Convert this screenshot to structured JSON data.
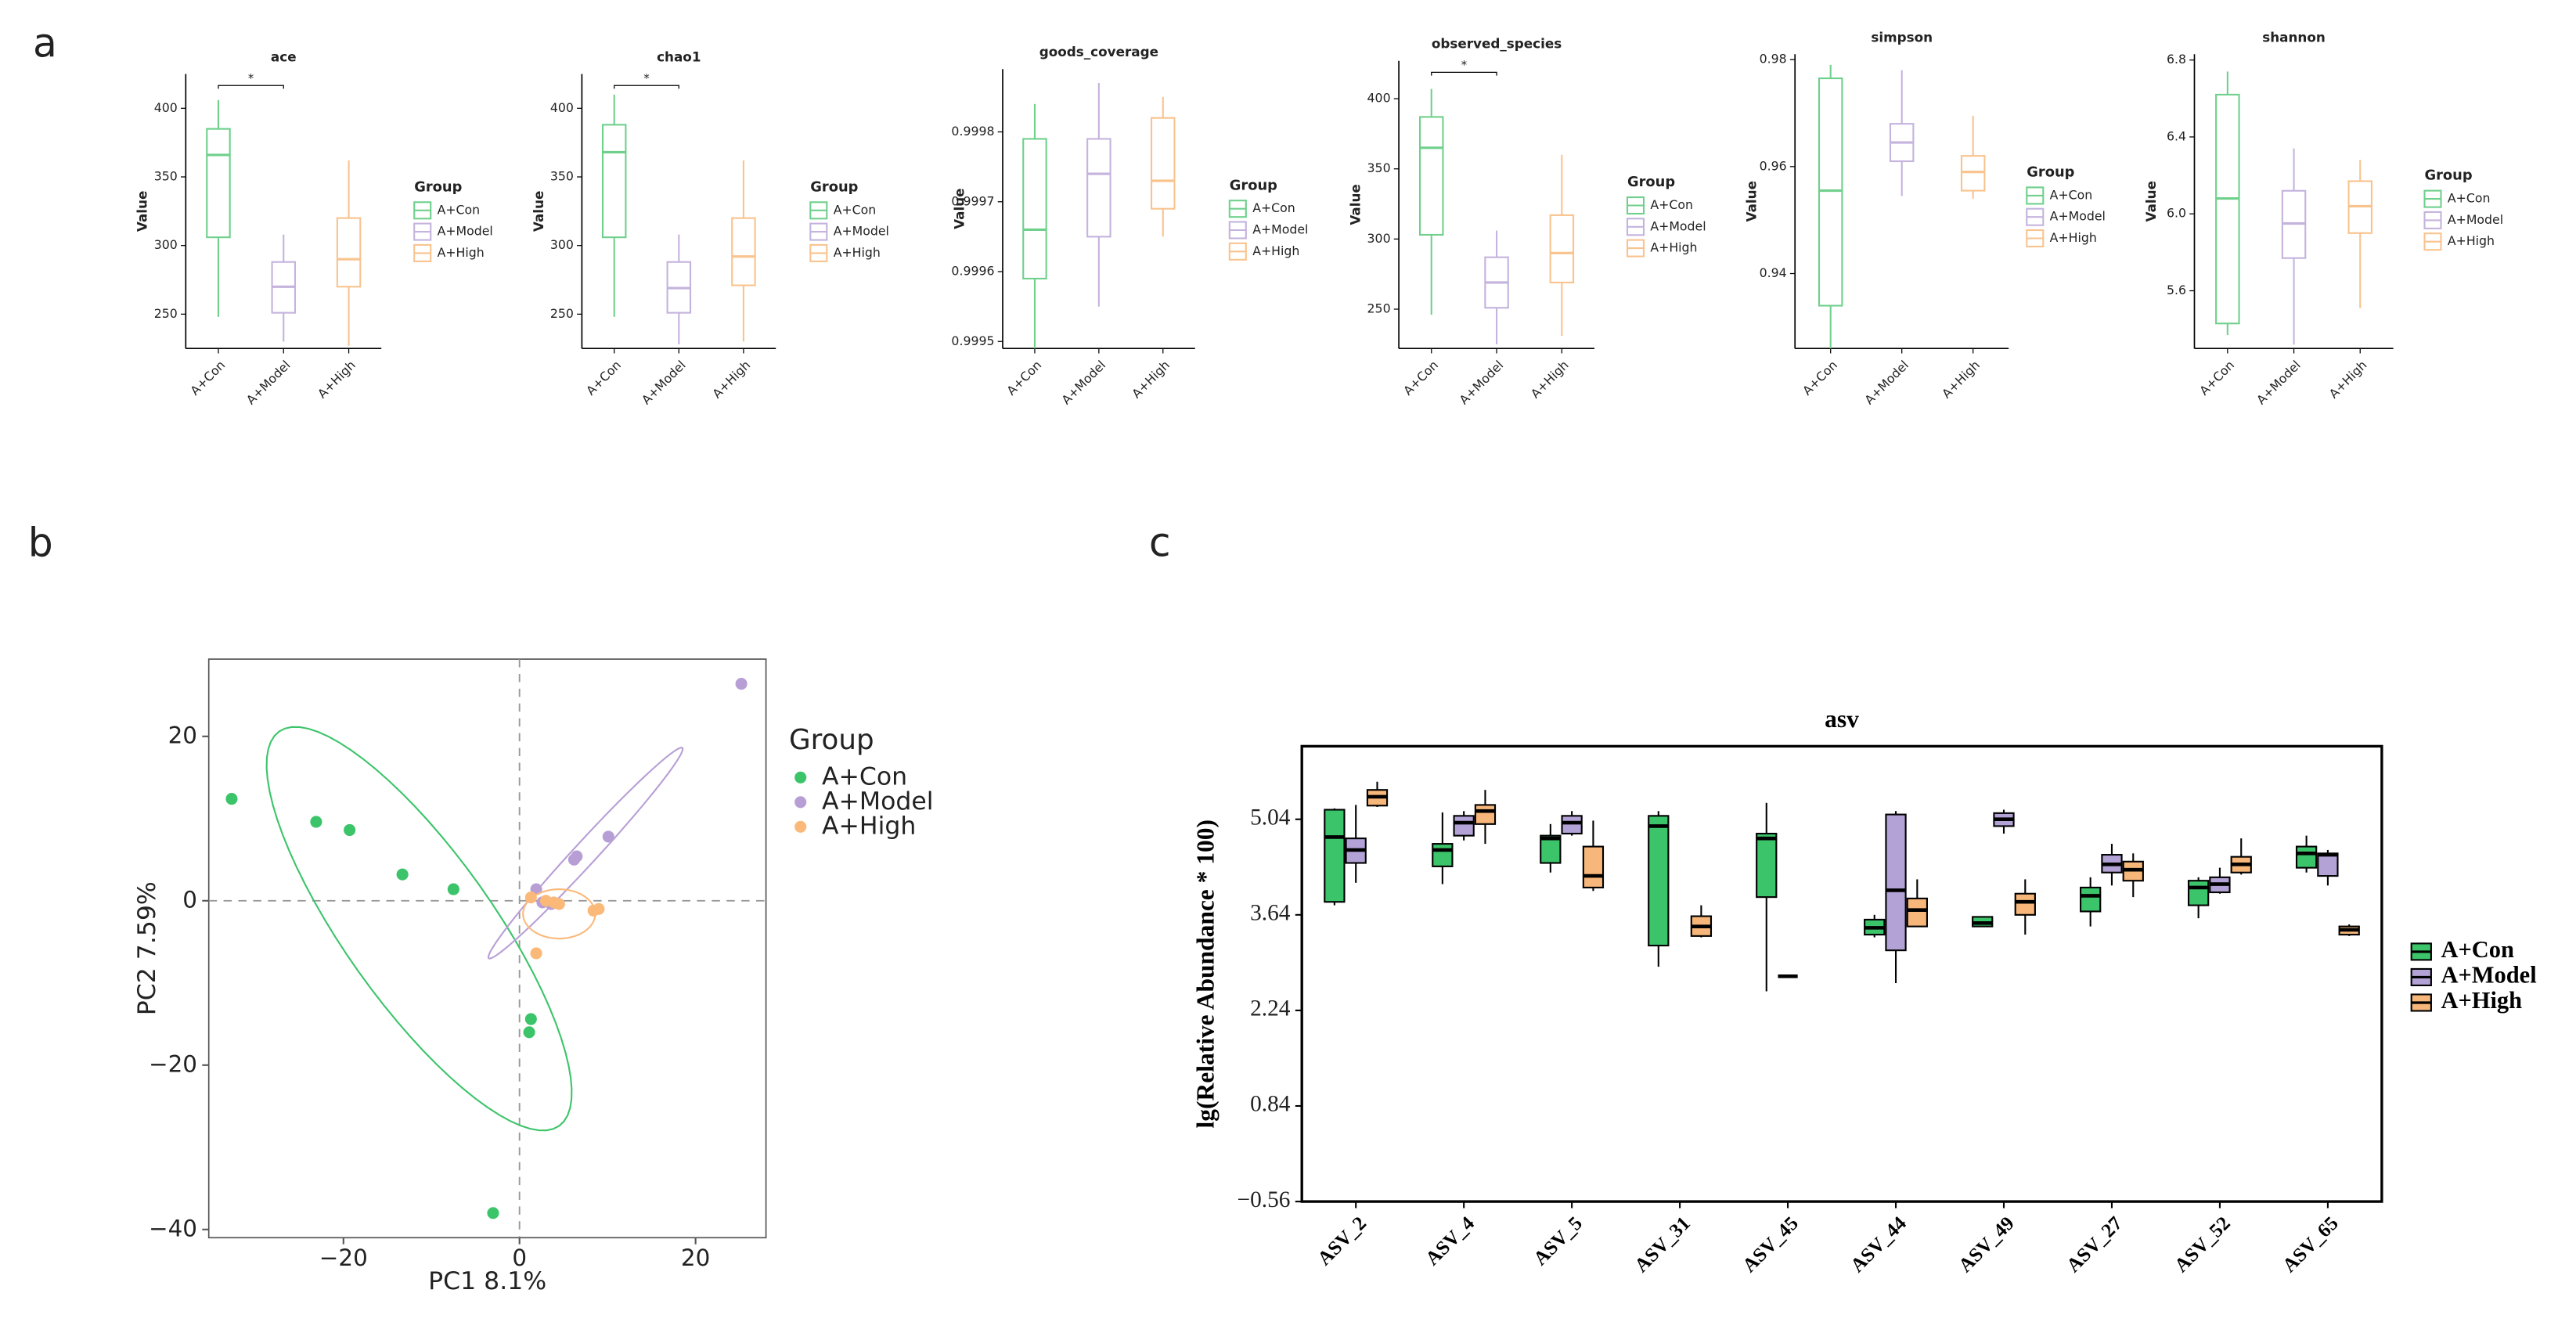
{
  "panel_labels": [
    "a",
    "b",
    "c"
  ],
  "chart_data": [
    {
      "type": "box",
      "title": "ace",
      "y_label": "Value",
      "legend_title": "Group",
      "categories": [
        "A+Con",
        "A+Model",
        "A+High"
      ],
      "ylim": [
        225,
        425
      ],
      "yticks": [
        250,
        300,
        350,
        400
      ],
      "annotations": [
        {
          "text": "*",
          "between": [
            "A+Con",
            "A+Model"
          ]
        }
      ],
      "series": [
        {
          "name": "A+Con",
          "color": "#6fd08c",
          "min": 248,
          "q1": 306,
          "median": 366,
          "q3": 385,
          "max": 406
        },
        {
          "name": "A+Model",
          "color": "#c4b3dd",
          "min": 230,
          "q1": 251,
          "median": 270,
          "q3": 288,
          "max": 308
        },
        {
          "name": "A+High",
          "color": "#f9c38e",
          "min": 227,
          "q1": 270,
          "median": 290,
          "q3": 320,
          "max": 362
        }
      ]
    },
    {
      "type": "box",
      "title": "chao1",
      "y_label": "Value",
      "legend_title": "Group",
      "categories": [
        "A+Con",
        "A+Model",
        "A+High"
      ],
      "ylim": [
        225,
        425
      ],
      "yticks": [
        250,
        300,
        350,
        400
      ],
      "annotations": [
        {
          "text": "*",
          "between": [
            "A+Con",
            "A+Model"
          ]
        }
      ],
      "series": [
        {
          "name": "A+Con",
          "color": "#6fd08c",
          "min": 248,
          "q1": 306,
          "median": 368,
          "q3": 388,
          "max": 410
        },
        {
          "name": "A+Model",
          "color": "#c4b3dd",
          "min": 228,
          "q1": 251,
          "median": 269,
          "q3": 288,
          "max": 308
        },
        {
          "name": "A+High",
          "color": "#f9c38e",
          "min": 230,
          "q1": 271,
          "median": 292,
          "q3": 320,
          "max": 362
        }
      ]
    },
    {
      "type": "box",
      "title": "goods_coverage",
      "y_label": "Value",
      "legend_title": "Group",
      "categories": [
        "A+Con",
        "A+Model",
        "A+High"
      ],
      "ylim": [
        0.99949,
        0.99989
      ],
      "yticks": [
        0.9995,
        0.9996,
        0.9997,
        0.9998
      ],
      "series": [
        {
          "name": "A+Con",
          "color": "#6fd08c",
          "min": 0.99949,
          "q1": 0.99959,
          "median": 0.99966,
          "q3": 0.99979,
          "max": 0.99984
        },
        {
          "name": "A+Model",
          "color": "#c4b3dd",
          "min": 0.99955,
          "q1": 0.99965,
          "median": 0.99974,
          "q3": 0.99979,
          "max": 0.99987
        },
        {
          "name": "A+High",
          "color": "#f9c38e",
          "min": 0.99965,
          "q1": 0.99969,
          "median": 0.99973,
          "q3": 0.99982,
          "max": 0.99985
        }
      ]
    },
    {
      "type": "box",
      "title": "observed_species",
      "y_label": "Value",
      "legend_title": "Group",
      "categories": [
        "A+Con",
        "A+Model",
        "A+High"
      ],
      "ylim": [
        222,
        427
      ],
      "yticks": [
        250,
        300,
        350,
        400
      ],
      "annotations": [
        {
          "text": "*",
          "between": [
            "A+Con",
            "A+Model"
          ]
        }
      ],
      "series": [
        {
          "name": "A+Con",
          "color": "#6fd08c",
          "min": 246,
          "q1": 303,
          "median": 365,
          "q3": 387,
          "max": 407
        },
        {
          "name": "A+Model",
          "color": "#c4b3dd",
          "min": 225,
          "q1": 251,
          "median": 269,
          "q3": 287,
          "max": 306
        },
        {
          "name": "A+High",
          "color": "#f9c38e",
          "min": 231,
          "q1": 269,
          "median": 290,
          "q3": 317,
          "max": 360
        }
      ]
    },
    {
      "type": "box",
      "title": "simpson",
      "y_label": "Value",
      "legend_title": "Group",
      "categories": [
        "A+Con",
        "A+Model",
        "A+High"
      ],
      "ylim": [
        0.926,
        0.981
      ],
      "yticks": [
        0.94,
        0.96,
        0.98
      ],
      "series": [
        {
          "name": "A+Con",
          "color": "#6fd08c",
          "min": 0.926,
          "q1": 0.934,
          "median": 0.9555,
          "q3": 0.9765,
          "max": 0.979
        },
        {
          "name": "A+Model",
          "color": "#c4b3dd",
          "min": 0.9545,
          "q1": 0.961,
          "median": 0.9645,
          "q3": 0.968,
          "max": 0.978
        },
        {
          "name": "A+High",
          "color": "#f9c38e",
          "min": 0.954,
          "q1": 0.9555,
          "median": 0.959,
          "q3": 0.962,
          "max": 0.9695
        }
      ]
    },
    {
      "type": "box",
      "title": "shannon",
      "y_label": "Value",
      "legend_title": "Group",
      "categories": [
        "A+Con",
        "A+Model",
        "A+High"
      ],
      "ylim": [
        5.3,
        6.83
      ],
      "yticks": [
        5.6,
        {
          "value": 6,
          "label": "6.0"
        },
        6.4,
        6.8
      ],
      "series": [
        {
          "name": "A+Con",
          "color": "#6fd08c",
          "min": 5.37,
          "q1": 5.43,
          "median": 6.08,
          "q3": 6.62,
          "max": 6.74
        },
        {
          "name": "A+Model",
          "color": "#c4b3dd",
          "min": 5.32,
          "q1": 5.77,
          "median": 5.95,
          "q3": 6.12,
          "max": 6.34
        },
        {
          "name": "A+High",
          "color": "#f9c38e",
          "min": 5.51,
          "q1": 5.9,
          "median": 6.04,
          "q3": 6.17,
          "max": 6.28
        }
      ]
    },
    {
      "type": "scatter",
      "x_label": "PC1 8.1%",
      "y_label": "PC2 7.59%",
      "legend_title": "Group",
      "xlim": [
        -35.3,
        28.0
      ],
      "ylim": [
        -41,
        29.4
      ],
      "xticks": [
        {
          "value": -20,
          "label": "−20"
        },
        0,
        20
      ],
      "yticks": [
        {
          "value": -40,
          "label": "−40"
        },
        {
          "value": -20,
          "label": "−20"
        },
        0,
        20
      ],
      "hlines": [
        0
      ],
      "vlines": [
        0
      ],
      "series": [
        {
          "name": "A+Con",
          "color": "#3cc46a",
          "x": [
            -32.7,
            -23.1,
            -19.3,
            -13.3,
            -7.5,
            1.3,
            1.1,
            -3
          ],
          "y": [
            12.4,
            9.6,
            8.6,
            3.2,
            1.4,
            -14.4,
            -16,
            -38
          ],
          "ellipse": {
            "center": [
              -11.4,
              -3.4
            ],
            "axis1": [
              15.9,
              -24
            ],
            "axis2": [
              6.9,
              5.2
            ]
          }
        },
        {
          "name": "A+Model",
          "color": "#b79fd6",
          "x": [
            25.2,
            10.1,
            6.5,
            6.2,
            1.9,
            2.6,
            3.6
          ],
          "y": [
            26.4,
            7.8,
            5.4,
            5,
            1.4,
            -0.2,
            -0.4
          ],
          "ellipse": {
            "center": [
              7.5,
              5.8
            ],
            "axis1": [
              11,
              12.8
            ],
            "axis2": [
              0.96,
              -0.94
            ]
          }
        },
        {
          "name": "A+High",
          "color": "#fbb979",
          "x": [
            1.3,
            3,
            3.9,
            8.4,
            9,
            1.9,
            4.5
          ],
          "y": [
            0.4,
            0,
            -0.2,
            -1.2,
            -1,
            -6.4,
            -0.4
          ],
          "ellipse": {
            "center": [
              4.5,
              -1.6
            ],
            "axis1": [
              4.1,
              0
            ],
            "axis2": [
              0,
              3
            ]
          }
        }
      ]
    },
    {
      "type": "grouped-box",
      "title": "asv",
      "y_label": "lg(Relative Abundance * 100)",
      "categories": [
        "ASV_2",
        "ASV_4",
        "ASV_5",
        "ASV_31",
        "ASV_45",
        "ASV_44",
        "ASV_49",
        "ASV_27",
        "ASV_52",
        "ASV_65"
      ],
      "ylim": [
        -0.56,
        6.11
      ],
      "yticks": [
        {
          "value": -0.56,
          "label": "−0.56"
        },
        0.84,
        2.24,
        3.64,
        5.04
      ],
      "series": [
        {
          "name": "A+Con",
          "color": "#3cc46a",
          "min": [
            3.78,
            4.09,
            4.26,
            2.88,
            2.52,
            3.31,
            3.47,
            3.47,
            3.59,
            4.26
          ],
          "q1": [
            3.83,
            4.35,
            4.4,
            3.19,
            3.9,
            3.35,
            3.47,
            3.69,
            3.78,
            4.33
          ],
          "median": [
            4.78,
            4.59,
            4.76,
            4.94,
            4.76,
            3.45,
            3.52,
            3.92,
            4.04,
            4.54
          ],
          "q3": [
            5.18,
            4.68,
            4.8,
            5.09,
            4.83,
            3.57,
            3.61,
            4.04,
            4.14,
            4.64
          ],
          "max": [
            5.2,
            5.14,
            4.97,
            5.16,
            5.28,
            3.64,
            3.61,
            4.19,
            4.19,
            4.8
          ]
        },
        {
          "name": "A+Model",
          "color": "#b3a2d6",
          "min": [
            4.11,
            4.73,
            4.8,
            null,
            2.74,
            2.64,
            4.83,
            4.07,
            3.95,
            4.07
          ],
          "q1": [
            4.4,
            4.8,
            4.83,
            null,
            2.74,
            3.12,
            4.94,
            4.26,
            3.97,
            4.21
          ],
          "median": [
            4.59,
            4.99,
            4.99,
            null,
            2.74,
            4.0,
            5.04,
            4.38,
            4.09,
            4.52
          ],
          "q3": [
            4.76,
            5.09,
            5.09,
            null,
            2.74,
            5.11,
            5.13,
            4.52,
            4.19,
            4.54
          ],
          "max": [
            5.25,
            5.16,
            5.16,
            null,
            2.74,
            5.16,
            5.18,
            4.68,
            4.33,
            4.59
          ]
        },
        {
          "name": "A+High",
          "color": "#f7b67a",
          "min": [
            5.22,
            4.68,
            3.99,
            3.31,
            null,
            3.47,
            3.35,
            3.9,
            4.23,
            3.33
          ],
          "q1": [
            5.24,
            4.97,
            4.04,
            3.33,
            null,
            3.47,
            3.64,
            4.14,
            4.26,
            3.35
          ],
          "median": [
            5.37,
            5.16,
            4.21,
            3.47,
            null,
            3.71,
            3.83,
            4.3,
            4.38,
            3.42
          ],
          "q3": [
            5.47,
            5.25,
            4.64,
            3.62,
            null,
            3.88,
            3.95,
            4.42,
            4.49,
            3.47
          ],
          "max": [
            5.59,
            5.47,
            5.02,
            3.78,
            null,
            4.16,
            4.16,
            4.54,
            4.76,
            3.5
          ]
        }
      ]
    }
  ]
}
